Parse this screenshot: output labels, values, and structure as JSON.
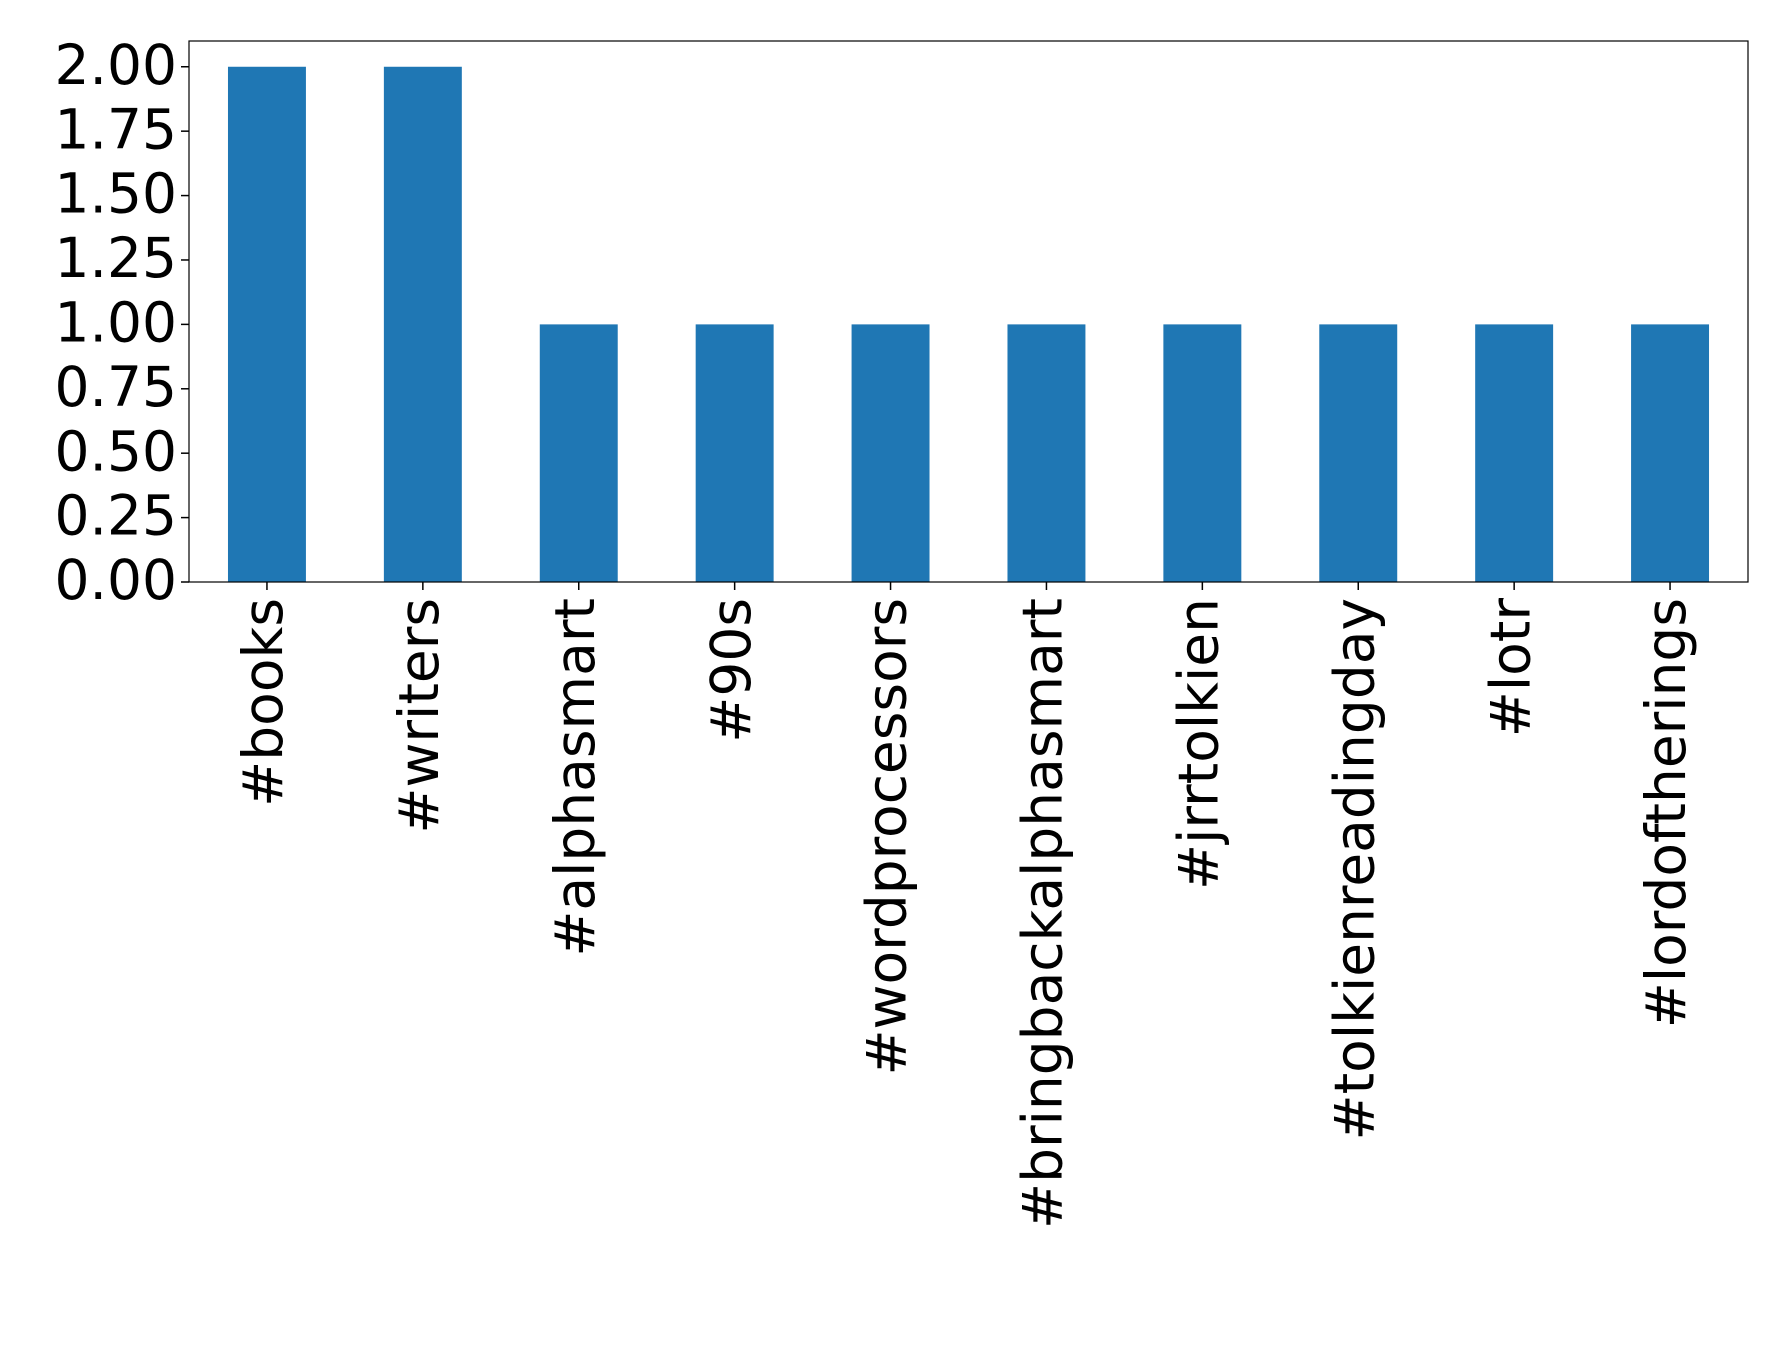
{
  "chart_data": {
    "type": "bar",
    "categories": [
      "#books",
      "#writers",
      "#alphasmart",
      "#90s",
      "#wordprocessors",
      "#bringbackalphasmart",
      "#jrrtolkien",
      "#tolkienreadingday",
      "#lotr",
      "#lordoftherings"
    ],
    "values": [
      2,
      2,
      1,
      1,
      1,
      1,
      1,
      1,
      1,
      1
    ],
    "color": "#1f77b4",
    "ylim": [
      0,
      2.1
    ],
    "yticks": [
      {
        "value": 0,
        "label": "0.00"
      },
      {
        "value": 0.25,
        "label": "0.25"
      },
      {
        "value": 0.5,
        "label": "0.50"
      },
      {
        "value": 0.75,
        "label": "0.75"
      },
      {
        "value": 1,
        "label": "1.00"
      },
      {
        "value": 1.25,
        "label": "1.25"
      },
      {
        "value": 1.5,
        "label": "1.50"
      },
      {
        "value": 1.75,
        "label": "1.75"
      },
      {
        "value": 2,
        "label": "2.00"
      }
    ],
    "grid": false
  }
}
